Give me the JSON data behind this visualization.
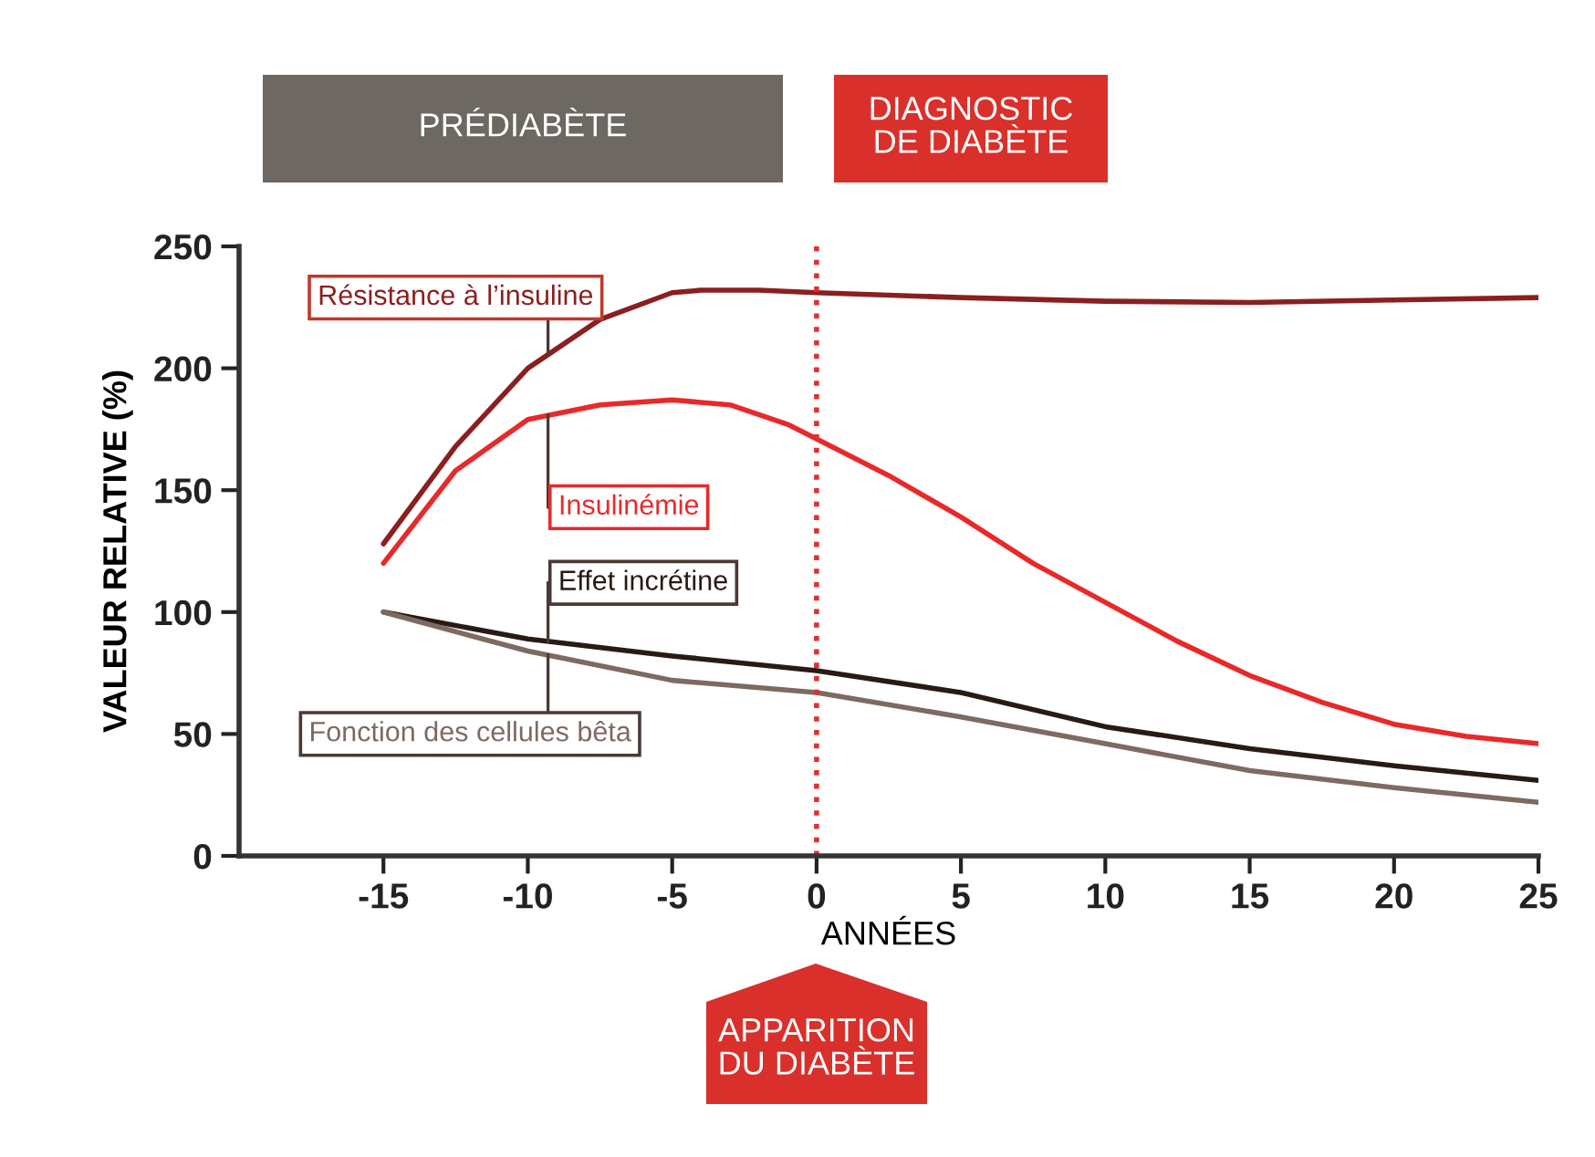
{
  "chart_data": {
    "type": "line",
    "xlabel": "ANNÉES",
    "ylabel": "VALEUR RELATIVE (%)",
    "xlim": [
      -20,
      25
    ],
    "xticks": [
      -15,
      -10,
      -5,
      0,
      5,
      10,
      15,
      20,
      25
    ],
    "ylim": [
      0,
      250
    ],
    "yticks": [
      0,
      50,
      100,
      150,
      200,
      250
    ],
    "grid": false,
    "legend": false,
    "marker": "none",
    "line_style": "solid",
    "series": [
      {
        "name": "Résistance à l’insuline",
        "color": "#8b1f1f",
        "x": [
          -15,
          -12.5,
          -10,
          -7.5,
          -5,
          -4,
          -2,
          0,
          5,
          10,
          15,
          20,
          25
        ],
        "values": [
          128,
          168,
          200,
          220,
          231,
          232,
          232,
          231,
          229,
          227.5,
          227,
          228,
          229
        ]
      },
      {
        "name": "Insulinémie",
        "color": "#e8292a",
        "x": [
          -15,
          -12.5,
          -10,
          -7.5,
          -5,
          -3,
          -1,
          0,
          2.5,
          5,
          7.5,
          10,
          12.5,
          15,
          17.5,
          20,
          22.5,
          25
        ],
        "values": [
          120,
          158,
          179,
          185,
          187,
          185,
          177,
          171,
          156,
          139,
          120,
          104,
          88,
          74,
          63,
          54,
          49,
          46
        ]
      },
      {
        "name": "Effet incrétine",
        "color": "#2a1a14",
        "x": [
          -15,
          -10,
          -5,
          0,
          5,
          10,
          15,
          20,
          25
        ],
        "values": [
          100,
          89,
          82,
          76,
          67,
          53,
          44,
          37,
          31
        ]
      },
      {
        "name": "Fonction des cellules bêta",
        "color": "#7d6a60",
        "x": [
          -15,
          -10,
          -5,
          0,
          5,
          10,
          15,
          20,
          25
        ],
        "values": [
          100,
          84,
          72,
          67,
          57,
          46,
          35,
          28,
          22
        ]
      }
    ],
    "ref_lines": [
      {
        "axis": "x",
        "value": 0,
        "color": "#e03030",
        "line_style": "dotted"
      }
    ],
    "annotations": [
      "PRÉDIABÈTE",
      "DIAGNOSTIC\nDE DIABÈTE",
      "APPARITION\nDU DIABÈTE"
    ]
  }
}
